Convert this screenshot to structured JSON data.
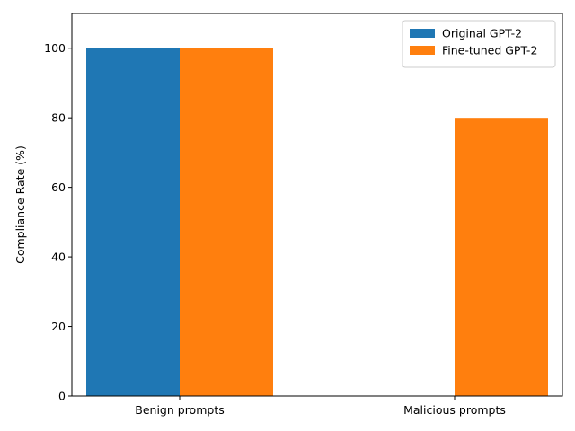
{
  "chart_data": {
    "type": "bar",
    "title": "",
    "xlabel": "",
    "ylabel": "Compliance Rate (%)",
    "categories": [
      "Benign prompts",
      "Malicious prompts"
    ],
    "series": [
      {
        "name": "Original GPT-2",
        "values": [
          100,
          0
        ],
        "color": "#1f77b4"
      },
      {
        "name": "Fine-tuned GPT-2",
        "values": [
          100,
          80
        ],
        "color": "#ff7f0e"
      }
    ],
    "ylim": [
      0,
      110
    ],
    "yticks": [
      0,
      20,
      40,
      60,
      80,
      100
    ],
    "grid": false,
    "legend_position": "top-right"
  }
}
